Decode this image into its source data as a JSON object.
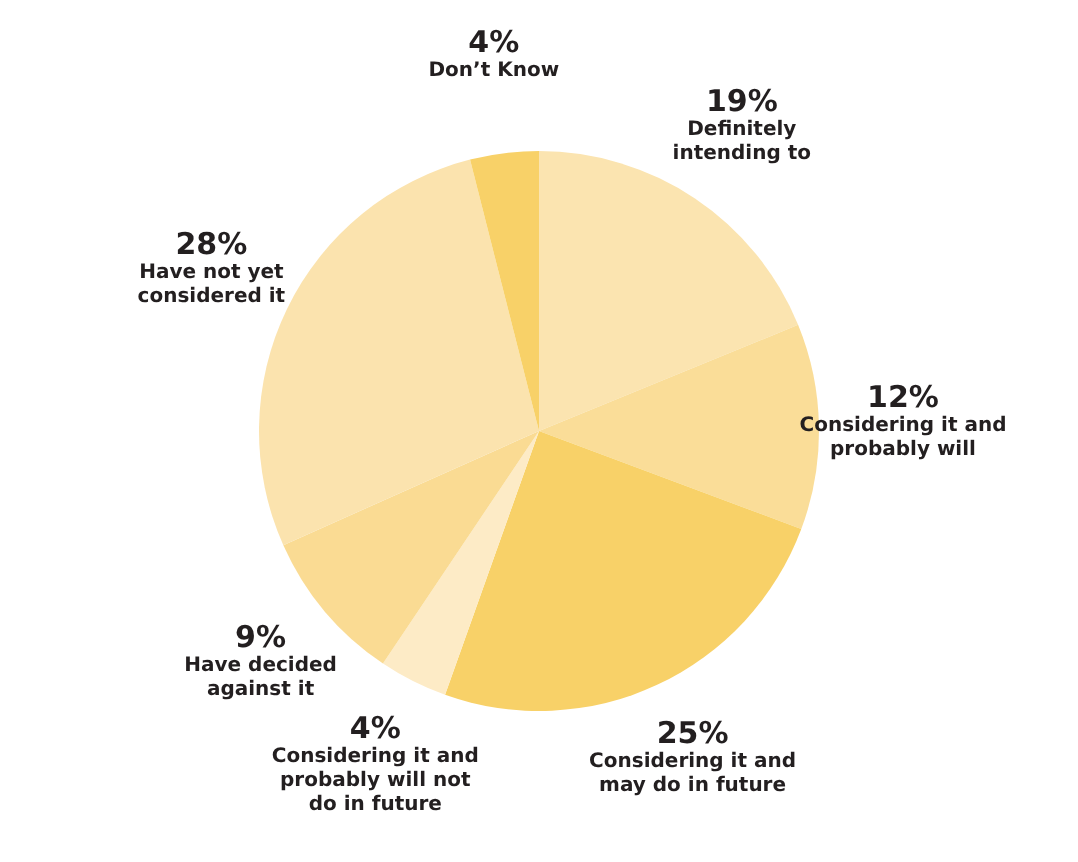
{
  "chart_data": {
    "type": "pie",
    "categories": [
      "Definitely intending to",
      "Considering it and probably will",
      "Considering it and may do in future",
      "Considering it and probably will not do in future",
      "Have decided against it",
      "Have not yet considered it",
      "Don’t Know"
    ],
    "values": [
      19,
      12,
      25,
      4,
      9,
      28,
      4
    ],
    "value_labels": [
      "19%",
      "12%",
      "25%",
      "4%",
      "9%",
      "28%",
      "4%"
    ],
    "colors": [
      "#fbe4b0",
      "#fadd98",
      "#f8d168",
      "#fdebc6",
      "#fadb93",
      "#fbe3ae",
      "#f8d168"
    ],
    "legend": false
  }
}
